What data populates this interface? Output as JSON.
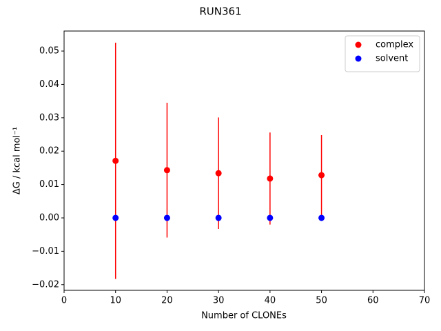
{
  "chart_data": {
    "type": "scatter",
    "title": "RUN361",
    "xlabel": "Number of CLONEs",
    "ylabel": "ΔG / kcal mol⁻¹",
    "x": [
      10,
      20,
      30,
      40,
      50
    ],
    "series": [
      {
        "name": "complex",
        "color": "#ff0000",
        "values": [
          0.0171,
          0.0143,
          0.0134,
          0.0118,
          0.0128
        ],
        "errors": [
          0.0354,
          0.0202,
          0.0167,
          0.0138,
          0.012
        ]
      },
      {
        "name": "solvent",
        "color": "#0000ff",
        "values": [
          0,
          0,
          0,
          0,
          0
        ]
      }
    ],
    "xlim": [
      0,
      70
    ],
    "xticks": [
      0,
      10,
      20,
      30,
      40,
      50,
      60,
      70
    ],
    "ylim": [
      -0.0217,
      0.056
    ],
    "yticks": [
      {
        "value": -0.02,
        "label": "−0.02"
      },
      {
        "value": -0.01,
        "label": "−0.01"
      },
      {
        "value": 0,
        "label": "0.00"
      },
      0.01,
      0.02,
      0.03,
      0.04,
      0.05
    ],
    "legend": "upper right"
  }
}
